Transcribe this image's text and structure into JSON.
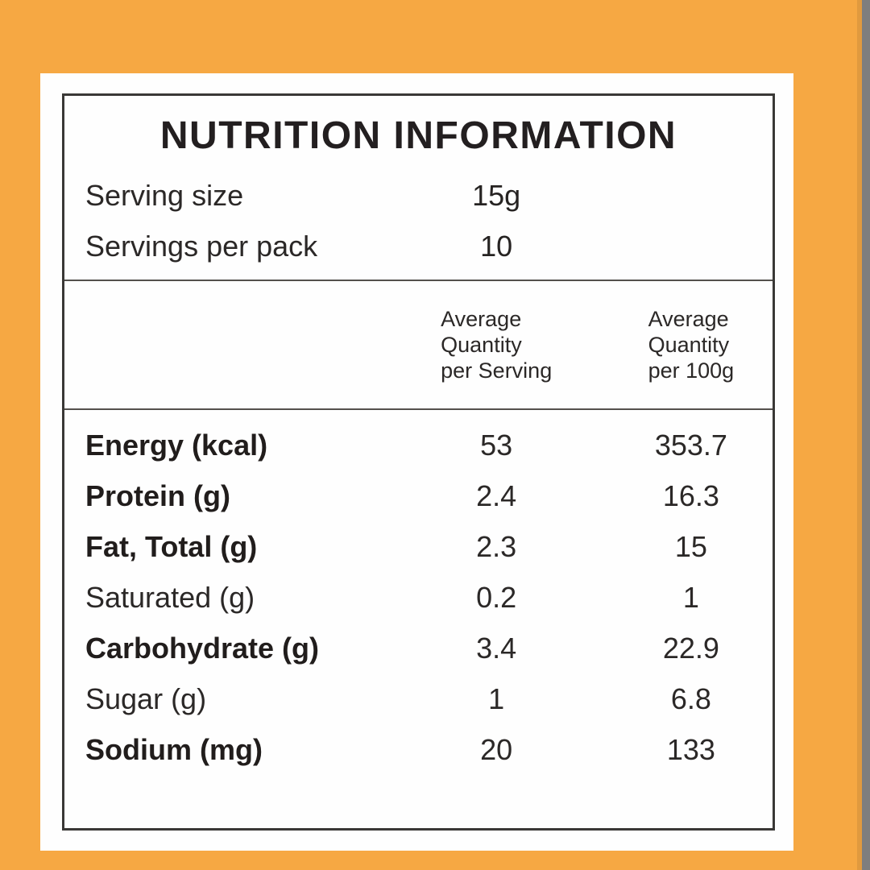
{
  "page": {
    "background_color": "#F6A843",
    "edge_strip_color": "#7E7E7E"
  },
  "panel": {
    "title": "NUTRITION INFORMATION",
    "serving_info": [
      {
        "label": "Serving size",
        "value": "15g"
      },
      {
        "label": "Servings per pack",
        "value": "10"
      }
    ],
    "column_headers": [
      "Average\nQuantity\nper Serving",
      "Average\nQuantity\nper 100g"
    ],
    "rows": [
      {
        "label": "Energy (kcal)",
        "per_serving": "53",
        "per_100g": "353.7"
      },
      {
        "label": "Protein (g)",
        "per_serving": "2.4",
        "per_100g": "16.3"
      },
      {
        "label": "Fat, Total (g)",
        "per_serving": "2.3",
        "per_100g": "15"
      },
      {
        "label": "Saturated (g)",
        "per_serving": "0.2",
        "per_100g": "1"
      },
      {
        "label": "Carbohydrate (g)",
        "per_serving": "3.4",
        "per_100g": "22.9"
      },
      {
        "label": "Sugar (g)",
        "per_serving": "1",
        "per_100g": "6.8"
      },
      {
        "label": "Sodium (mg)",
        "per_serving": "20",
        "per_100g": "133"
      }
    ]
  }
}
